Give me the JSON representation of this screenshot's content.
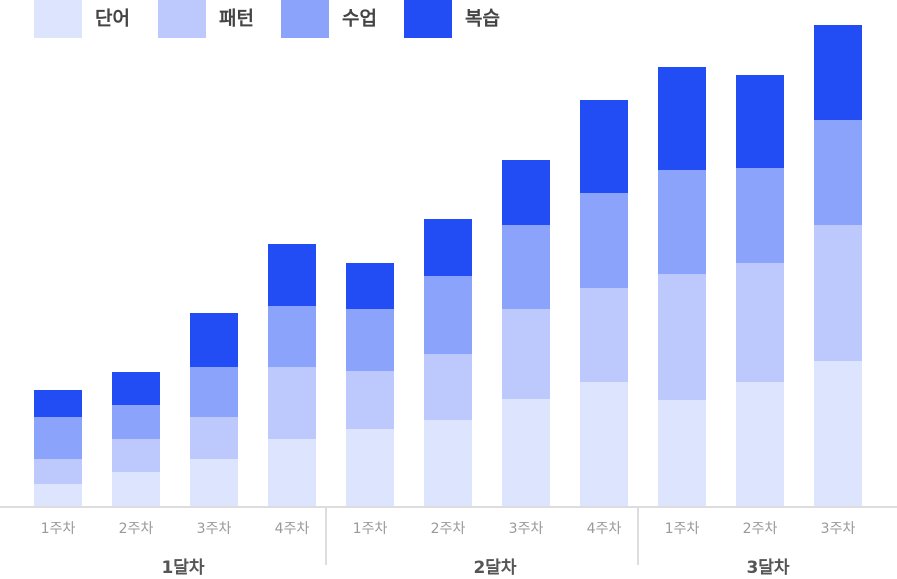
{
  "chart_data": {
    "type": "stacked_bar",
    "groups": [
      {
        "name": "1달차",
        "categories": [
          "1주차",
          "2주차",
          "3주차",
          "4주차"
        ]
      },
      {
        "name": "2달차",
        "categories": [
          "1주차",
          "2주차",
          "3주차",
          "4주차"
        ]
      },
      {
        "name": "3달차",
        "categories": [
          "1주차",
          "2주차",
          "3주차"
        ]
      }
    ],
    "series": [
      {
        "name": "단어",
        "color": "#dde4fd",
        "values": [
          22,
          34,
          47,
          67,
          77,
          86,
          107,
          124,
          106,
          124,
          145
        ]
      },
      {
        "name": "패턴",
        "color": "#bdc9fc",
        "values": [
          25,
          33,
          42,
          72,
          58,
          66,
          90,
          94,
          126,
          119,
          136
        ]
      },
      {
        "name": "수업",
        "color": "#8ca3fc",
        "values": [
          42,
          34,
          50,
          61,
          62,
          78,
          84,
          95,
          104,
          95,
          105
        ]
      },
      {
        "name": "복습",
        "color": "#224df5",
        "values": [
          27,
          33,
          54,
          62,
          46,
          57,
          65,
          93,
          103,
          93,
          95
        ]
      }
    ],
    "ylim": [
      0,
      481
    ]
  }
}
